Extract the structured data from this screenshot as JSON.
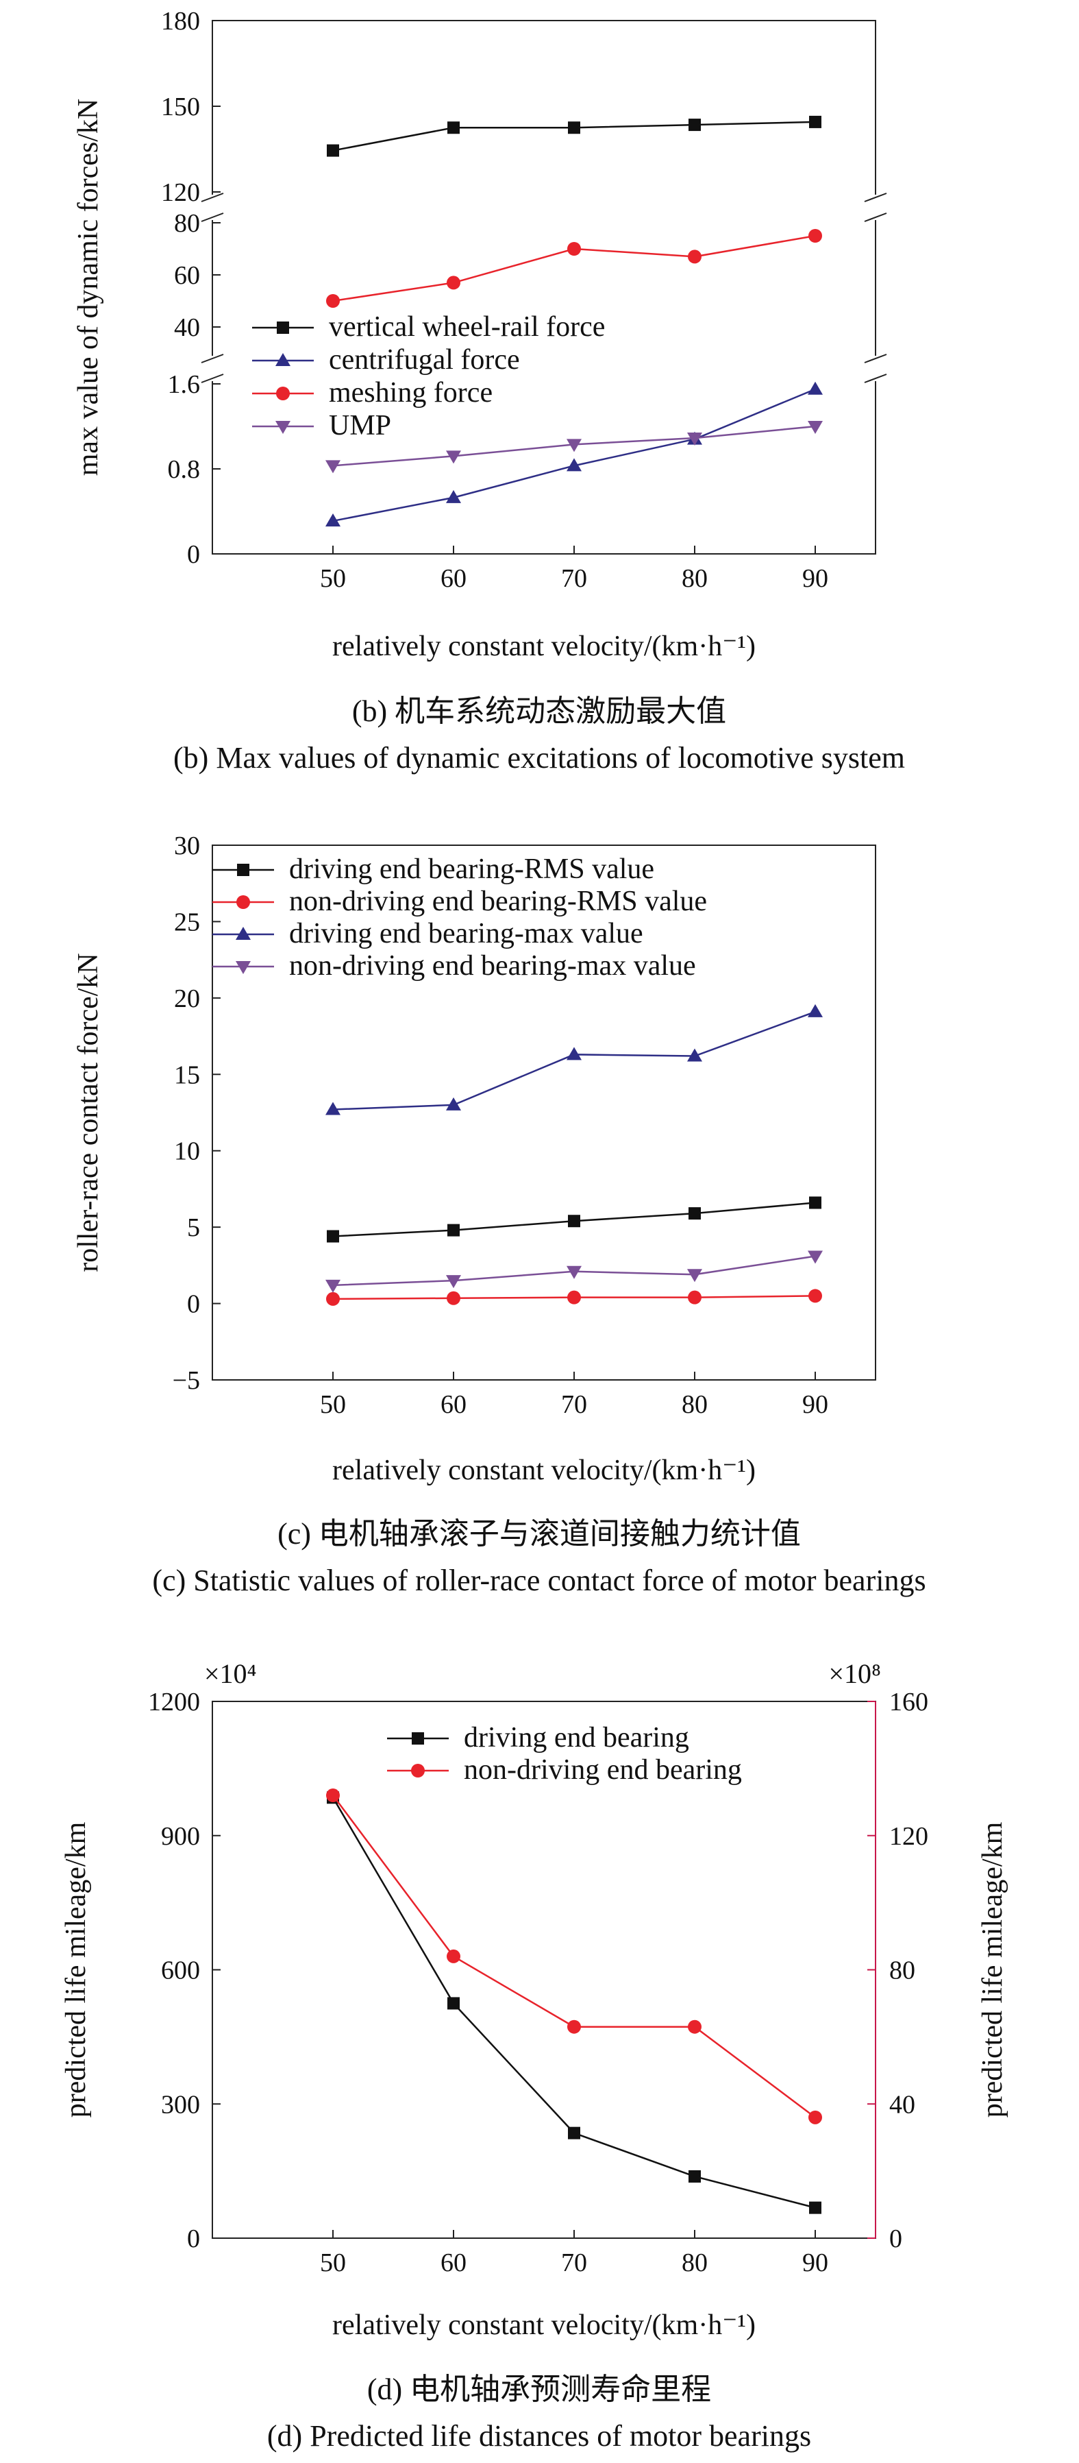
{
  "colors": {
    "black": "#111111",
    "navy": "#2e2e86",
    "red": "#e8232b",
    "purple": "#7a4f96",
    "crimson": "#c8174a"
  },
  "chart_data": [
    {
      "id": "b",
      "type": "line",
      "x": [
        50,
        60,
        70,
        80,
        90
      ],
      "xticks": [
        "50",
        "60",
        "70",
        "80",
        "90"
      ],
      "xlim": [
        40,
        95
      ],
      "xlabel": "relatively constant velocity/(km·h⁻¹)",
      "ylabel": "max value of dynamic forces/kN",
      "broken_axis": true,
      "segments": [
        {
          "ylim": [
            120,
            180
          ],
          "ticks": [
            "120",
            "150",
            "180"
          ]
        },
        {
          "ylim": [
            30,
            80
          ],
          "ticks": [
            "40",
            "60",
            "80"
          ]
        },
        {
          "ylim": [
            0,
            1.6
          ],
          "ticks": [
            "0",
            "0.8",
            "1.6"
          ]
        }
      ],
      "series": [
        {
          "name": "vertical wheel-rail force",
          "segment": 0,
          "marker": "square",
          "color": "#111111",
          "values": [
            134.5,
            142.5,
            142.5,
            143.5,
            144.5
          ]
        },
        {
          "name": "centrifugal force",
          "segment": 2,
          "marker": "triangle-up",
          "color": "#2e2e86",
          "values": [
            0.31,
            0.53,
            0.83,
            1.08,
            1.55
          ]
        },
        {
          "name": "meshing force",
          "segment": 1,
          "marker": "circle",
          "color": "#e8232b",
          "values": [
            50,
            57,
            70,
            67,
            75
          ]
        },
        {
          "name": "UMP",
          "segment": 2,
          "marker": "triangle-down",
          "color": "#7a4f96",
          "values": [
            0.83,
            0.92,
            1.03,
            1.09,
            1.2
          ]
        }
      ],
      "legend": "inside-left",
      "caption_cn": "(b) 机车系统动态激励最大值",
      "caption_en": "(b) Max values of dynamic excitations of locomotive system"
    },
    {
      "id": "c",
      "type": "line",
      "x": [
        50,
        60,
        70,
        80,
        90
      ],
      "xticks": [
        "50",
        "60",
        "70",
        "80",
        "90"
      ],
      "xlim": [
        40,
        95
      ],
      "ylim": [
        -5,
        30
      ],
      "yticks": [
        "−5",
        "0",
        "5",
        "10",
        "15",
        "20",
        "25",
        "30"
      ],
      "xlabel": "relatively constant velocity/(km·h⁻¹)",
      "ylabel": "roller-race contact force/kN",
      "series": [
        {
          "name": "driving end bearing-RMS value",
          "marker": "square",
          "color": "#111111",
          "values": [
            4.4,
            4.8,
            5.4,
            5.9,
            6.6
          ]
        },
        {
          "name": "non-driving end bearing-RMS value",
          "marker": "circle",
          "color": "#e8232b",
          "values": [
            0.3,
            0.35,
            0.4,
            0.4,
            0.5
          ]
        },
        {
          "name": "driving end bearing-max value",
          "marker": "triangle-up",
          "color": "#2e2e86",
          "values": [
            12.7,
            13.0,
            16.3,
            16.2,
            19.1
          ]
        },
        {
          "name": "non-driving end bearing-max value",
          "marker": "triangle-down",
          "color": "#7a4f96",
          "values": [
            1.2,
            1.5,
            2.1,
            1.9,
            3.1
          ]
        }
      ],
      "legend": "top-left",
      "caption_cn": "(c) 电机轴承滚子与滚道间接触力统计值",
      "caption_en": "(c) Statistic values of roller-race contact force of motor bearings"
    },
    {
      "id": "d",
      "type": "line",
      "x": [
        50,
        60,
        70,
        80,
        90
      ],
      "xticks": [
        "50",
        "60",
        "70",
        "80",
        "90"
      ],
      "xlim": [
        40,
        95
      ],
      "ylim_left": [
        0,
        1200
      ],
      "yticks_left": [
        "0",
        "300",
        "600",
        "900",
        "1200"
      ],
      "ylim_right": [
        0,
        160
      ],
      "yticks_right": [
        "0",
        "40",
        "80",
        "120",
        "160"
      ],
      "left_multiplier": "×10⁴",
      "right_multiplier": "×10⁸",
      "xlabel": "relatively constant velocity/(km·h⁻¹)",
      "ylabel_left": "predicted life mileage/km",
      "ylabel_right": "predicted life mileage/km",
      "series": [
        {
          "name": "driving end bearing",
          "axis": "left",
          "marker": "square",
          "color": "#111111",
          "values": [
            985,
            525,
            235,
            138,
            68
          ]
        },
        {
          "name": "non-driving end bearing",
          "axis": "right",
          "marker": "circle",
          "color": "#e8232b",
          "values": [
            132,
            84,
            63,
            63,
            36
          ]
        }
      ],
      "legend": "top-center",
      "caption_cn": "(d) 电机轴承预测寿命里程",
      "caption_en": "(d) Predicted life distances of motor bearings"
    }
  ]
}
